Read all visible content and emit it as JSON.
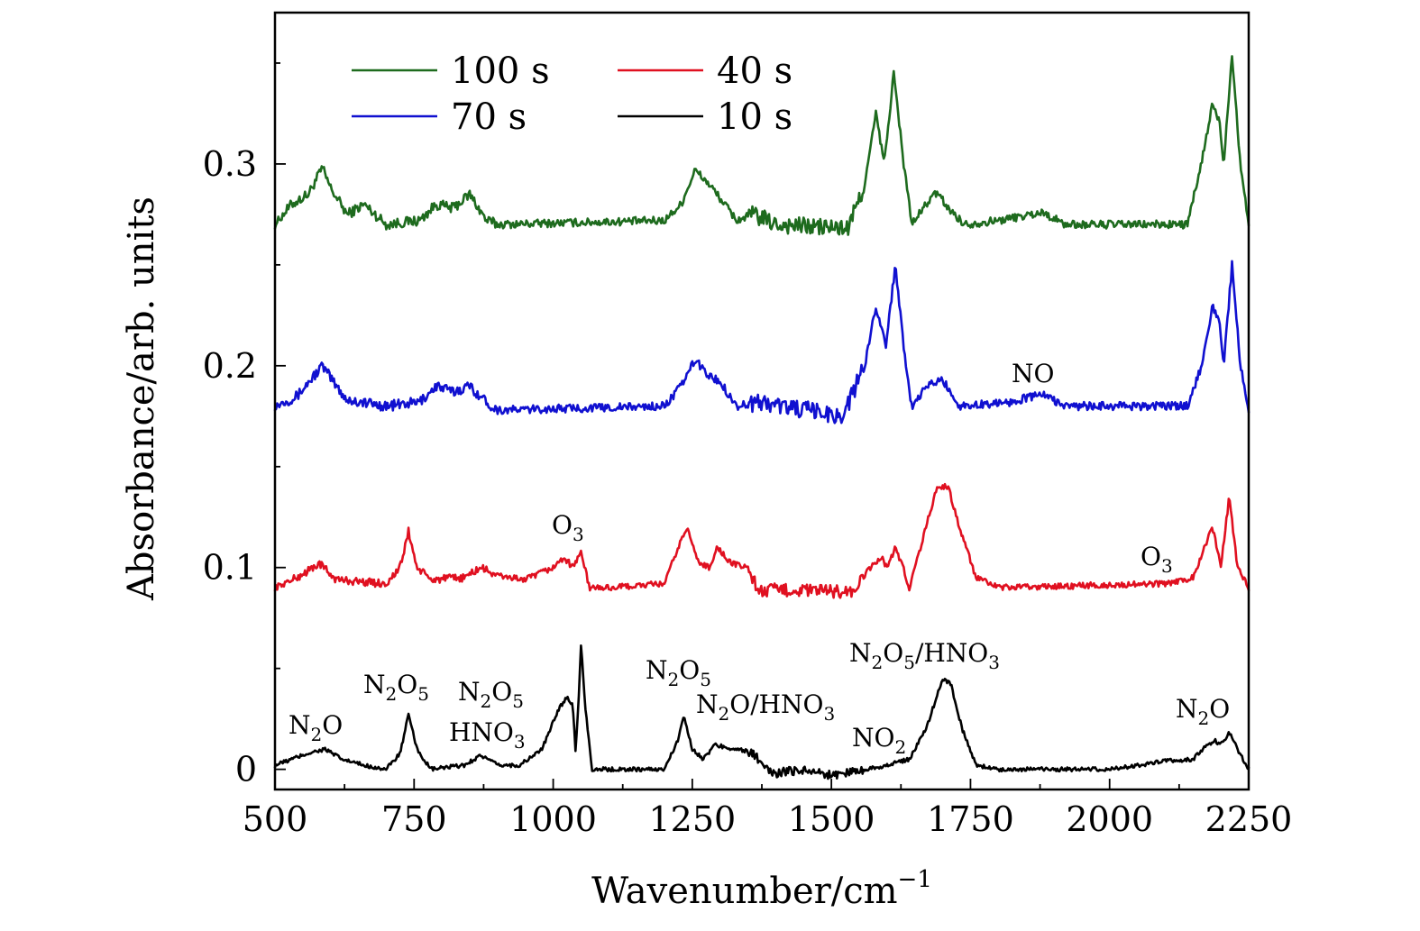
{
  "chart_data": {
    "type": "line",
    "xlabel": "Wavenumber/cm",
    "xlabel_superscript": "−1",
    "ylabel": "Absorbance/arb. units",
    "xlim": [
      500,
      2250
    ],
    "ylim": [
      -0.01,
      0.375
    ],
    "x_ticks": [
      "500",
      "750",
      "1000",
      "1250",
      "1500",
      "1750",
      "2000",
      "2250"
    ],
    "y_ticks": [
      "0",
      "0.1",
      "0.2",
      "0.3"
    ],
    "legend": {
      "placement": "top-left",
      "entries": [
        {
          "label": "100 s",
          "color": "#1e6b1e"
        },
        {
          "label": "40 s",
          "color": "#e01020"
        },
        {
          "label": "70 s",
          "color": "#1010d0"
        },
        {
          "label": "10 s",
          "color": "#000000"
        }
      ]
    },
    "series": [
      {
        "name": "100 s",
        "color": "#1e6b1e",
        "baseline": 0.27,
        "noise": 0.004,
        "points": [
          [
            500,
            0.27
          ],
          [
            530,
            0.28
          ],
          [
            560,
            0.285
          ],
          [
            585,
            0.298
          ],
          [
            600,
            0.288
          ],
          [
            630,
            0.275
          ],
          [
            660,
            0.28
          ],
          [
            700,
            0.27
          ],
          [
            760,
            0.272
          ],
          [
            790,
            0.28
          ],
          [
            820,
            0.278
          ],
          [
            850,
            0.285
          ],
          [
            880,
            0.272
          ],
          [
            900,
            0.27
          ],
          [
            1200,
            0.272
          ],
          [
            1230,
            0.28
          ],
          [
            1255,
            0.297
          ],
          [
            1280,
            0.29
          ],
          [
            1300,
            0.283
          ],
          [
            1330,
            0.272
          ],
          [
            1360,
            0.275
          ],
          [
            1400,
            0.27
          ],
          [
            1530,
            0.268
          ],
          [
            1560,
            0.29
          ],
          [
            1580,
            0.325
          ],
          [
            1595,
            0.3
          ],
          [
            1612,
            0.345
          ],
          [
            1630,
            0.3
          ],
          [
            1645,
            0.27
          ],
          [
            1670,
            0.28
          ],
          [
            1690,
            0.286
          ],
          [
            1710,
            0.278
          ],
          [
            1740,
            0.27
          ],
          [
            1800,
            0.272
          ],
          [
            1880,
            0.276
          ],
          [
            1920,
            0.27
          ],
          [
            2140,
            0.27
          ],
          [
            2165,
            0.3
          ],
          [
            2185,
            0.33
          ],
          [
            2198,
            0.32
          ],
          [
            2205,
            0.3
          ],
          [
            2220,
            0.355
          ],
          [
            2235,
            0.3
          ],
          [
            2250,
            0.27
          ]
        ]
      },
      {
        "name": "70 s",
        "color": "#1010d0",
        "baseline": 0.18,
        "noise": 0.004,
        "points": [
          [
            500,
            0.18
          ],
          [
            540,
            0.185
          ],
          [
            585,
            0.2
          ],
          [
            610,
            0.19
          ],
          [
            630,
            0.183
          ],
          [
            700,
            0.18
          ],
          [
            760,
            0.182
          ],
          [
            790,
            0.19
          ],
          [
            820,
            0.187
          ],
          [
            850,
            0.19
          ],
          [
            880,
            0.182
          ],
          [
            900,
            0.178
          ],
          [
            1200,
            0.18
          ],
          [
            1230,
            0.19
          ],
          [
            1255,
            0.203
          ],
          [
            1280,
            0.195
          ],
          [
            1300,
            0.192
          ],
          [
            1330,
            0.18
          ],
          [
            1370,
            0.182
          ],
          [
            1520,
            0.175
          ],
          [
            1560,
            0.2
          ],
          [
            1580,
            0.23
          ],
          [
            1598,
            0.21
          ],
          [
            1615,
            0.25
          ],
          [
            1630,
            0.21
          ],
          [
            1645,
            0.178
          ],
          [
            1670,
            0.19
          ],
          [
            1700,
            0.193
          ],
          [
            1730,
            0.18
          ],
          [
            1820,
            0.182
          ],
          [
            1880,
            0.186
          ],
          [
            1920,
            0.18
          ],
          [
            2140,
            0.18
          ],
          [
            2165,
            0.2
          ],
          [
            2185,
            0.23
          ],
          [
            2198,
            0.22
          ],
          [
            2205,
            0.2
          ],
          [
            2220,
            0.25
          ],
          [
            2235,
            0.2
          ],
          [
            2250,
            0.178
          ]
        ]
      },
      {
        "name": "40 s",
        "color": "#e01020",
        "baseline": 0.09,
        "noise": 0.003,
        "points": [
          [
            500,
            0.09
          ],
          [
            540,
            0.095
          ],
          [
            580,
            0.102
          ],
          [
            610,
            0.094
          ],
          [
            700,
            0.092
          ],
          [
            725,
            0.1
          ],
          [
            740,
            0.118
          ],
          [
            755,
            0.1
          ],
          [
            780,
            0.094
          ],
          [
            840,
            0.095
          ],
          [
            870,
            0.1
          ],
          [
            900,
            0.096
          ],
          [
            950,
            0.094
          ],
          [
            1000,
            0.1
          ],
          [
            1020,
            0.105
          ],
          [
            1035,
            0.1
          ],
          [
            1050,
            0.108
          ],
          [
            1065,
            0.09
          ],
          [
            1100,
            0.09
          ],
          [
            1200,
            0.092
          ],
          [
            1225,
            0.11
          ],
          [
            1240,
            0.12
          ],
          [
            1260,
            0.103
          ],
          [
            1280,
            0.1
          ],
          [
            1295,
            0.11
          ],
          [
            1320,
            0.102
          ],
          [
            1350,
            0.1
          ],
          [
            1370,
            0.088
          ],
          [
            1400,
            0.089
          ],
          [
            1540,
            0.088
          ],
          [
            1570,
            0.1
          ],
          [
            1590,
            0.105
          ],
          [
            1600,
            0.1
          ],
          [
            1615,
            0.11
          ],
          [
            1625,
            0.103
          ],
          [
            1640,
            0.09
          ],
          [
            1660,
            0.11
          ],
          [
            1690,
            0.14
          ],
          [
            1710,
            0.14
          ],
          [
            1730,
            0.12
          ],
          [
            1760,
            0.095
          ],
          [
            1800,
            0.09
          ],
          [
            2100,
            0.092
          ],
          [
            2150,
            0.095
          ],
          [
            2170,
            0.11
          ],
          [
            2185,
            0.12
          ],
          [
            2200,
            0.1
          ],
          [
            2215,
            0.135
          ],
          [
            2230,
            0.1
          ],
          [
            2250,
            0.09
          ]
        ]
      },
      {
        "name": "10 s",
        "color": "#000000",
        "baseline": 0.0,
        "noise": 0.002,
        "points": [
          [
            500,
            0.002
          ],
          [
            560,
            0.008
          ],
          [
            590,
            0.01
          ],
          [
            620,
            0.005
          ],
          [
            660,
            0.002
          ],
          [
            700,
            0.0
          ],
          [
            725,
            0.008
          ],
          [
            740,
            0.027
          ],
          [
            755,
            0.01
          ],
          [
            780,
            0.0
          ],
          [
            840,
            0.002
          ],
          [
            870,
            0.007
          ],
          [
            900,
            0.002
          ],
          [
            940,
            0.002
          ],
          [
            980,
            0.01
          ],
          [
            1010,
            0.03
          ],
          [
            1025,
            0.036
          ],
          [
            1035,
            0.032
          ],
          [
            1040,
            0.01
          ],
          [
            1045,
            0.03
          ],
          [
            1050,
            0.062
          ],
          [
            1058,
            0.03
          ],
          [
            1070,
            0.0
          ],
          [
            1200,
            0.0
          ],
          [
            1225,
            0.015
          ],
          [
            1235,
            0.027
          ],
          [
            1250,
            0.01
          ],
          [
            1270,
            0.005
          ],
          [
            1290,
            0.012
          ],
          [
            1330,
            0.01
          ],
          [
            1360,
            0.008
          ],
          [
            1380,
            0.0
          ],
          [
            1400,
            -0.002
          ],
          [
            1450,
            0.0
          ],
          [
            1500,
            -0.003
          ],
          [
            1560,
            0.0
          ],
          [
            1600,
            0.002
          ],
          [
            1640,
            0.005
          ],
          [
            1670,
            0.02
          ],
          [
            1700,
            0.045
          ],
          [
            1715,
            0.042
          ],
          [
            1735,
            0.02
          ],
          [
            1760,
            0.002
          ],
          [
            1800,
            0.0
          ],
          [
            2000,
            0.0
          ],
          [
            2100,
            0.004
          ],
          [
            2150,
            0.005
          ],
          [
            2175,
            0.012
          ],
          [
            2190,
            0.014
          ],
          [
            2198,
            0.012
          ],
          [
            2215,
            0.018
          ],
          [
            2230,
            0.01
          ],
          [
            2250,
            0.0
          ]
        ]
      }
    ]
  },
  "labels": {
    "ylabel": "Absorbance/arb. units",
    "xlabel": "Wavenumber/cm",
    "xlabel_sup": "−1",
    "legend_100": "100 s",
    "legend_40": "40 s",
    "legend_70": "70 s",
    "legend_10": "10 s",
    "NO": "NO",
    "O3_1_main": "O",
    "O3_1_sub": "3",
    "O3_2_main": "O",
    "O3_2_sub": "3",
    "N2O_1": "N",
    "N2O_1_sub": "2",
    "N2O_1_rest": "O",
    "N2O5_1": "N",
    "N2O5_1_sub": "2",
    "N2O5_1_mid": "O",
    "N2O5_1_sub2": "5",
    "N2O5_2": "N",
    "N2O5_2_sub": "2",
    "N2O5_2_mid": "O",
    "N2O5_2_sub2": "5",
    "HNO3_1_main": "HNO",
    "HNO3_1_sub": "3",
    "N2O5_3": "N",
    "N2O5_3_sub": "2",
    "N2O5_3_mid": "O",
    "N2O5_3_sub2": "5",
    "N2OHNO3_1": "N",
    "N2OHNO3_1_sub": "2",
    "N2OHNO3_1_mid": "O/HNO",
    "N2OHNO3_1_sub2": "3",
    "NO2_main": "NO",
    "NO2_sub": "2",
    "N2O5HNO3_1": "N",
    "N2O5HNO3_1_sub": "2",
    "N2O5HNO3_1_mid": "O",
    "N2O5HNO3_1_sub2": "5",
    "N2O5HNO3_1_mid2": "/HNO",
    "N2O5HNO3_1_sub3": "3",
    "N2O_2": "N",
    "N2O_2_sub": "2",
    "N2O_2_rest": "O"
  }
}
